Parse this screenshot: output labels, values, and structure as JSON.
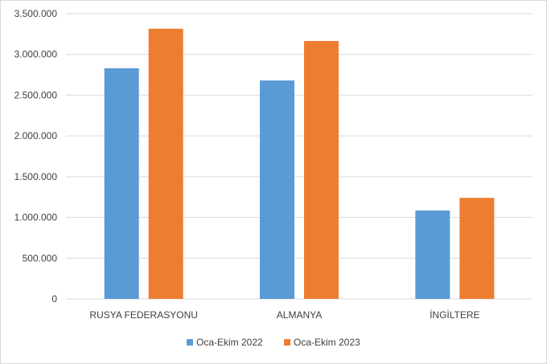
{
  "chart_data": {
    "type": "bar",
    "categories": [
      "RUSYA FEDERASYONU",
      "ALMANYA",
      "İNGİLTERE"
    ],
    "series": [
      {
        "name": "Oca-Ekim 2022",
        "color": "#5b9bd5",
        "values": [
          2830000,
          2680000,
          1085000
        ]
      },
      {
        "name": "Oca-Ekim 2023",
        "color": "#ed7d31",
        "values": [
          3315000,
          3165000,
          1240000
        ]
      }
    ],
    "title": "",
    "xlabel": "",
    "ylabel": "",
    "ylim": [
      0,
      3500000
    ],
    "yticks": [
      0,
      500000,
      1000000,
      1500000,
      2000000,
      2500000,
      3000000,
      3500000
    ],
    "ytick_labels": [
      "0",
      "500.000",
      "1.000.000",
      "1.500.000",
      "2.000.000",
      "2.500.000",
      "3.000.000",
      "3.500.000"
    ],
    "grid": true,
    "legend": "bottom",
    "gridline_color": "#d9d9d9"
  }
}
